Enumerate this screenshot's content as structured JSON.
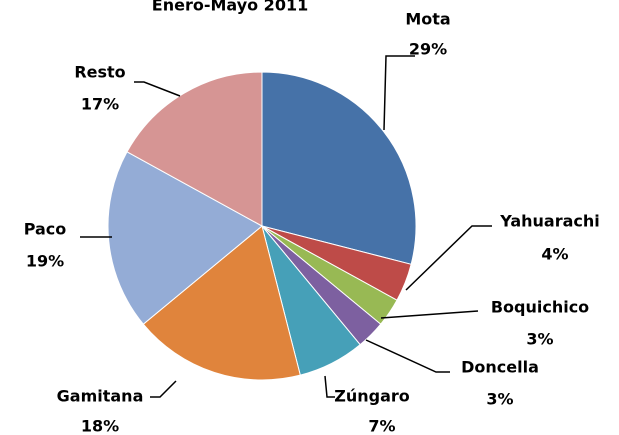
{
  "chart_data": {
    "type": "pie",
    "title": "Enero-Mayo 2011",
    "categories": [
      "Mota",
      "Yahuarachi",
      "Boquichico",
      "Doncella",
      "Zúngaro",
      "Gamitana",
      "Paco",
      "Resto"
    ],
    "values": [
      29,
      4,
      3,
      3,
      7,
      18,
      19,
      17
    ],
    "value_labels": [
      "29%",
      "4%",
      "3%",
      "3%",
      "7%",
      "18%",
      "19%",
      "17%"
    ],
    "colors": [
      "#4672a8",
      "#be4b48",
      "#98b954",
      "#7d60a0",
      "#46a0b8",
      "#e0843c",
      "#94acd6",
      "#d69594"
    ]
  }
}
